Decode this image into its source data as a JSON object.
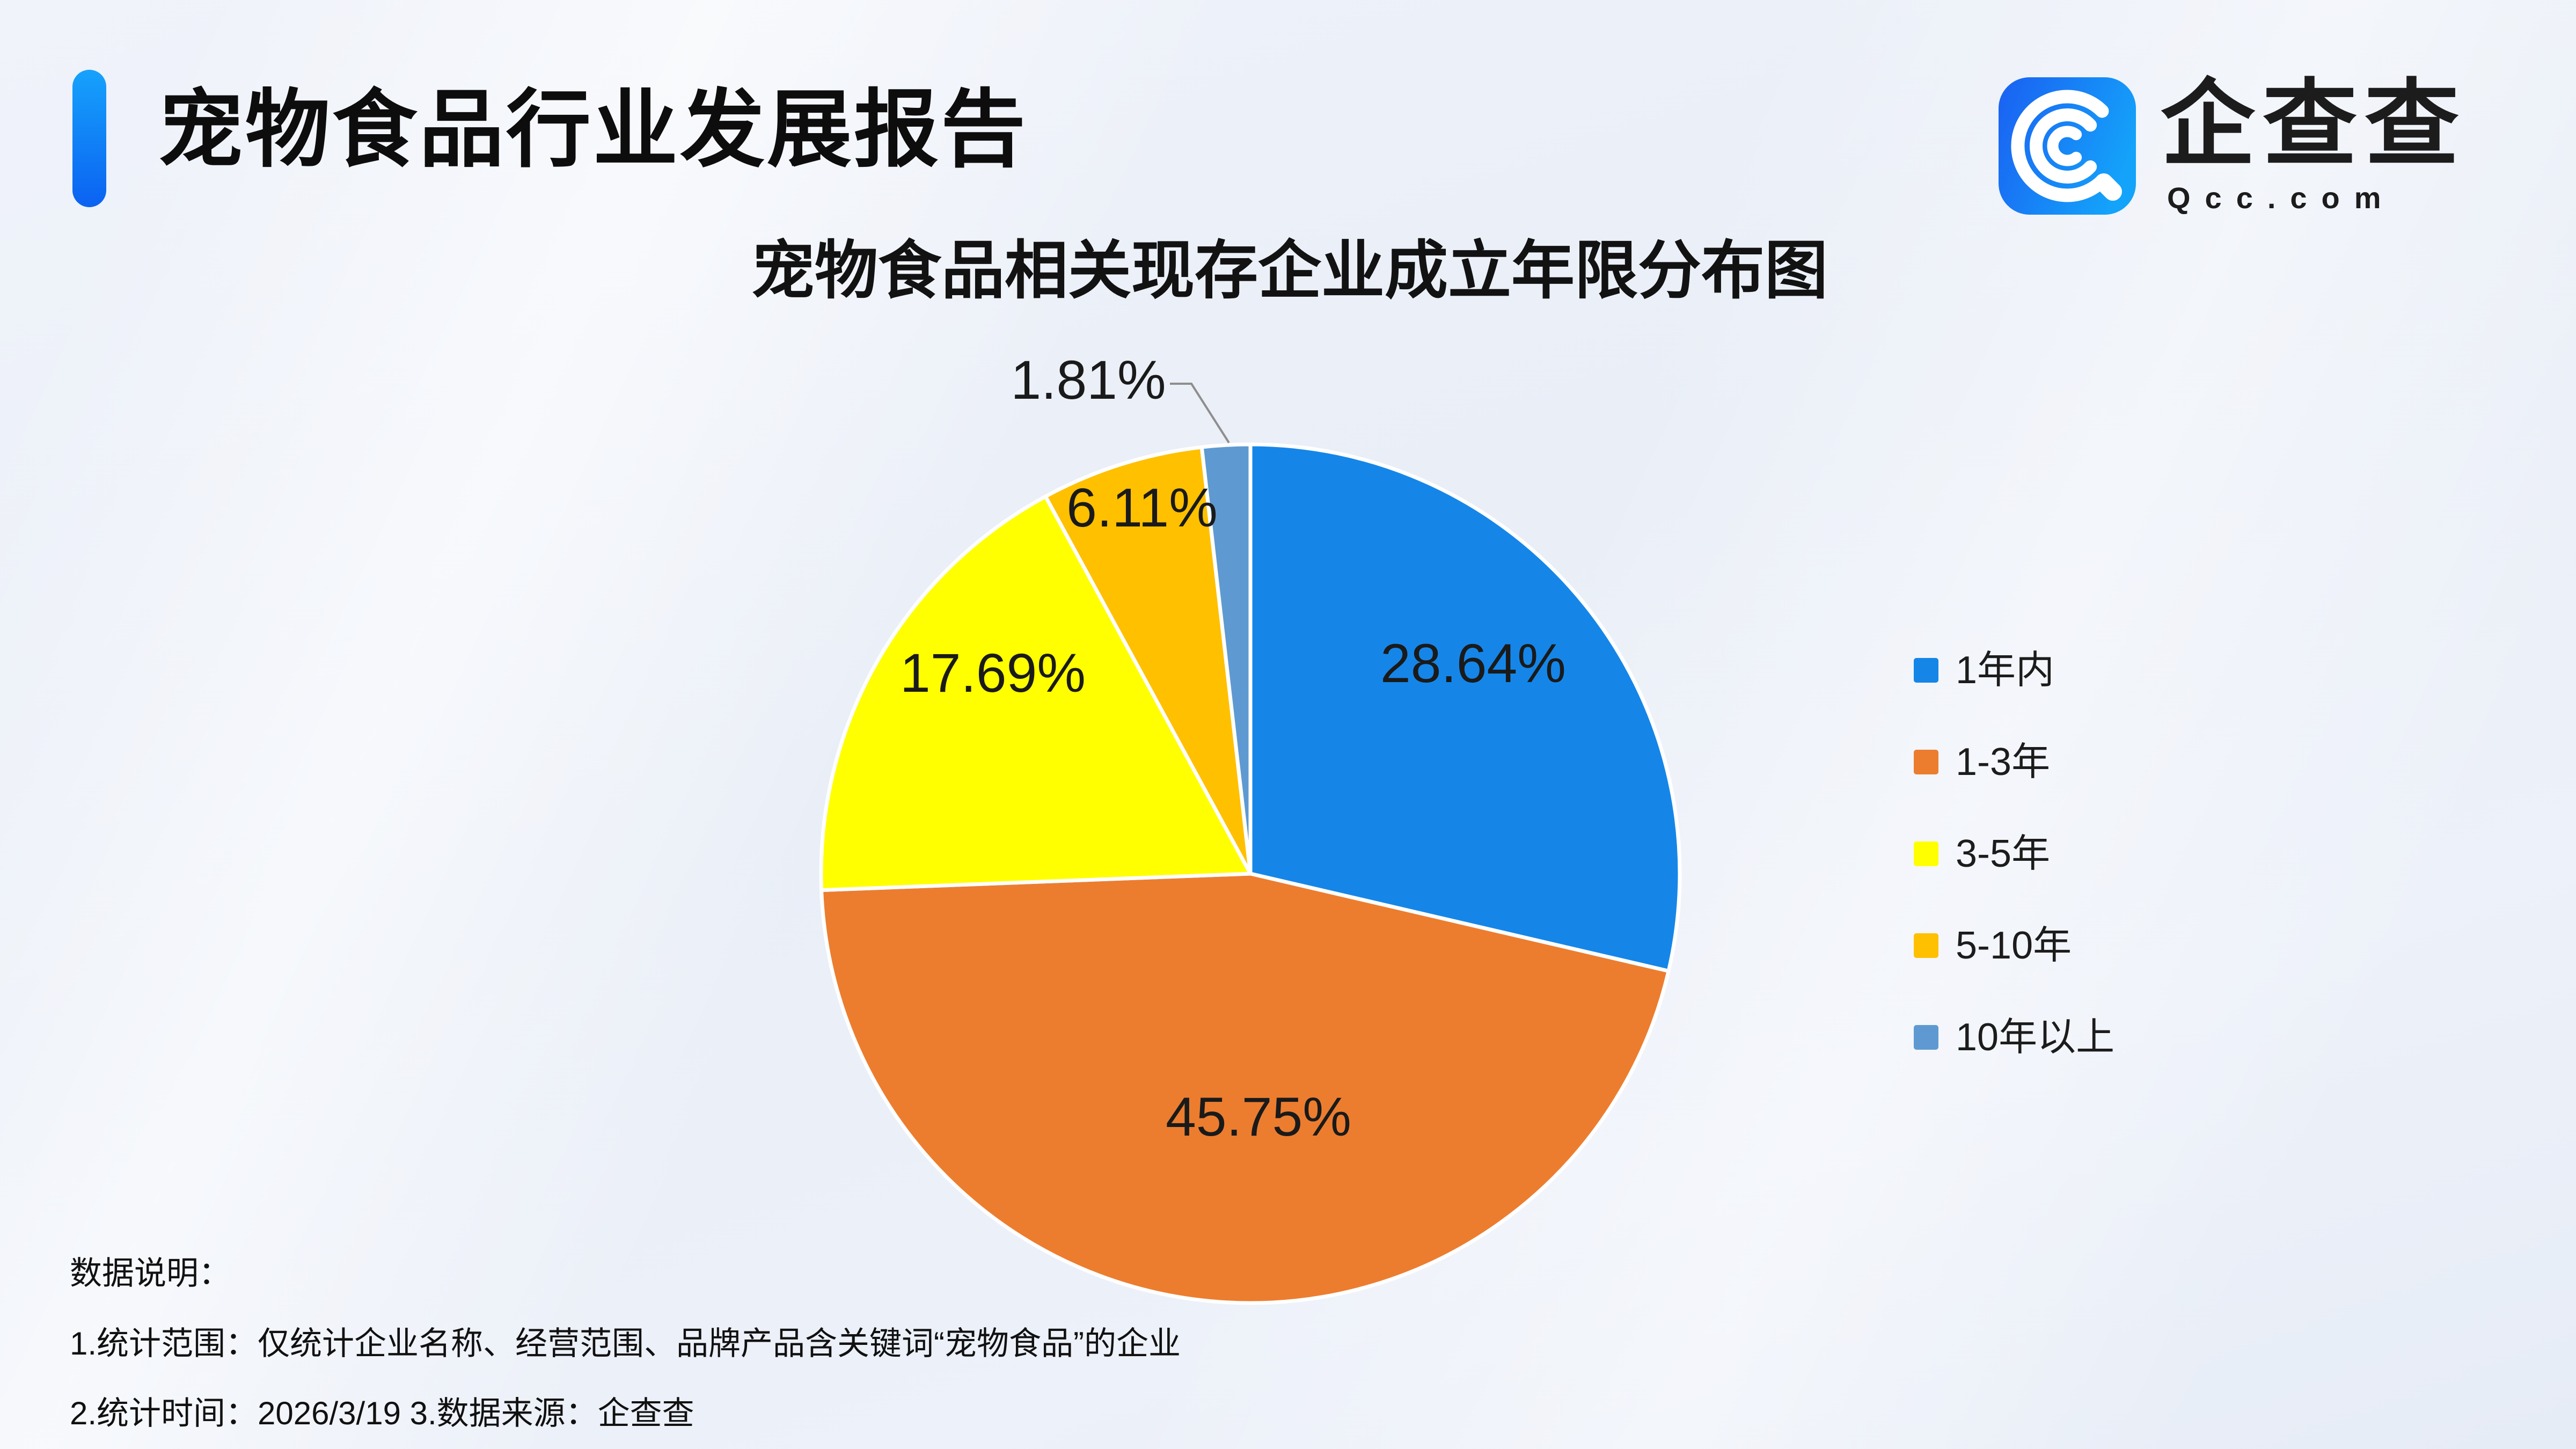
{
  "page": {
    "title": "宠物食品行业发展报告",
    "brand": {
      "name": "企查查",
      "domain": "Qcc.com"
    },
    "notes": {
      "heading": "数据说明：",
      "line1": "1.统计范围：仅统计企业名称、经营范围、品牌产品含关键词“宠物食品”的企业",
      "line2": "2.统计时间：2026/3/19  3.数据来源：企查查"
    }
  },
  "chart_data": {
    "type": "pie",
    "title": "宠物食品相关现存企业成立年限分布图",
    "categories": [
      "1年内",
      "1-3年",
      "3-5年",
      "5-10年",
      "10年以上"
    ],
    "values": [
      28.64,
      45.75,
      17.69,
      6.11,
      1.81
    ],
    "labels": [
      "28.64%",
      "45.75%",
      "17.69%",
      "6.11%",
      "1.81%"
    ],
    "colors": [
      "#1586E8",
      "#EC7D2F",
      "#FFFF00",
      "#FFC000",
      "#5E9AD1"
    ],
    "start_angle_deg": -90,
    "direction": "clockwise",
    "legend_position": "right",
    "label_color": "#1a1a1a",
    "leader_line_color": "#8e8e8e",
    "slice_border_color": "#ffffff"
  }
}
